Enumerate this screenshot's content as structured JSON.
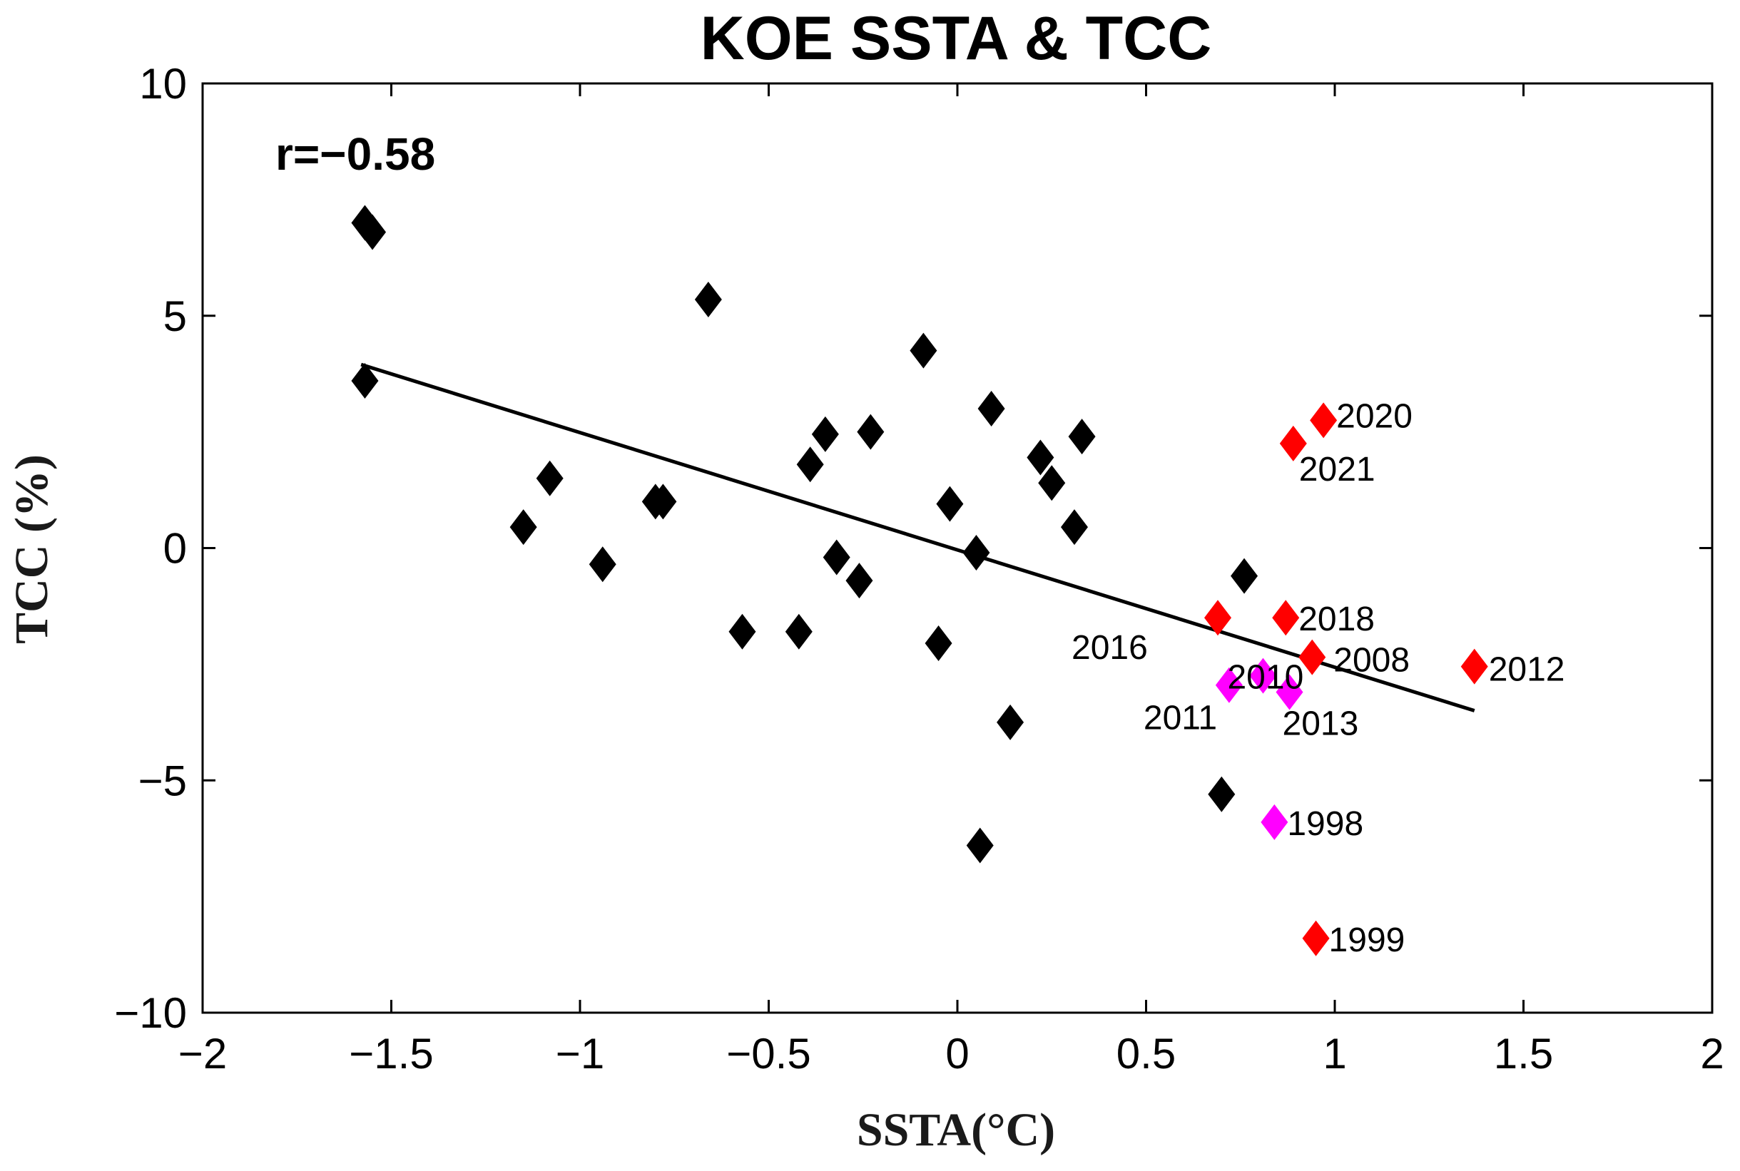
{
  "chart_data": {
    "type": "scatter",
    "title": "KOE SSTA & TCC",
    "xlabel": "SSTA(°C)",
    "ylabel": "TCC (%)",
    "annotation": "r=−0.58",
    "xlim": [
      -2,
      2
    ],
    "ylim": [
      -10,
      10
    ],
    "xticks": [
      -2,
      -1.5,
      -1,
      -0.5,
      0,
      0.5,
      1,
      1.5,
      2
    ],
    "yticks": [
      -10,
      -5,
      0,
      5,
      10
    ],
    "xtick_labels": [
      "−2",
      "−1.5",
      "−1",
      "−0.5",
      "0",
      "0.5",
      "1",
      "1.5",
      "2"
    ],
    "ytick_labels": [
      "−10",
      "−5",
      "0",
      "5",
      "10"
    ],
    "grid": false,
    "colors": {
      "black": "#000000",
      "red": "#ff0000",
      "magenta": "#ff00ff",
      "line": "#000000"
    },
    "points": [
      {
        "x": -1.57,
        "y": 7.0,
        "color": "black"
      },
      {
        "x": -1.55,
        "y": 6.8,
        "color": "black"
      },
      {
        "x": -1.57,
        "y": 3.6,
        "color": "black"
      },
      {
        "x": -1.15,
        "y": 0.45,
        "color": "black"
      },
      {
        "x": -1.08,
        "y": 1.5,
        "color": "black"
      },
      {
        "x": -0.94,
        "y": -0.35,
        "color": "black"
      },
      {
        "x": -0.8,
        "y": 1.0,
        "color": "black"
      },
      {
        "x": -0.78,
        "y": 1.0,
        "color": "black"
      },
      {
        "x": -0.66,
        "y": 5.35,
        "color": "black"
      },
      {
        "x": -0.57,
        "y": -1.8,
        "color": "black"
      },
      {
        "x": -0.42,
        "y": -1.8,
        "color": "black"
      },
      {
        "x": -0.39,
        "y": 1.8,
        "color": "black"
      },
      {
        "x": -0.35,
        "y": 2.45,
        "color": "black"
      },
      {
        "x": -0.32,
        "y": -0.2,
        "color": "black"
      },
      {
        "x": -0.26,
        "y": -0.7,
        "color": "black"
      },
      {
        "x": -0.23,
        "y": 2.5,
        "color": "black"
      },
      {
        "x": -0.09,
        "y": 4.25,
        "color": "black"
      },
      {
        "x": -0.05,
        "y": -2.05,
        "color": "black"
      },
      {
        "x": -0.02,
        "y": 0.95,
        "color": "black"
      },
      {
        "x": 0.05,
        "y": -0.1,
        "color": "black"
      },
      {
        "x": 0.06,
        "y": -6.4,
        "color": "black"
      },
      {
        "x": 0.09,
        "y": 3.0,
        "color": "black"
      },
      {
        "x": 0.14,
        "y": -3.75,
        "color": "black"
      },
      {
        "x": 0.22,
        "y": 1.95,
        "color": "black"
      },
      {
        "x": 0.25,
        "y": 1.4,
        "color": "black"
      },
      {
        "x": 0.31,
        "y": 0.45,
        "color": "black"
      },
      {
        "x": 0.33,
        "y": 2.4,
        "color": "black"
      },
      {
        "x": 0.7,
        "y": -5.3,
        "color": "black"
      },
      {
        "x": 0.76,
        "y": -0.6,
        "color": "black"
      },
      {
        "x": 0.69,
        "y": -1.5,
        "color": "red",
        "label": "2016"
      },
      {
        "x": 0.87,
        "y": -1.5,
        "color": "red",
        "label": "2018"
      },
      {
        "x": 0.94,
        "y": -2.35,
        "color": "red",
        "label": "2008"
      },
      {
        "x": 1.37,
        "y": -2.55,
        "color": "red",
        "label": "2012"
      },
      {
        "x": 0.97,
        "y": 2.75,
        "color": "red",
        "label": "2020"
      },
      {
        "x": 0.89,
        "y": 2.25,
        "color": "red",
        "label": "2021"
      },
      {
        "x": 0.95,
        "y": -8.4,
        "color": "red",
        "label": "1999"
      },
      {
        "x": 0.72,
        "y": -2.95,
        "color": "magenta",
        "label": "2011"
      },
      {
        "x": 0.81,
        "y": -2.75,
        "color": "magenta",
        "label": "2010"
      },
      {
        "x": 0.88,
        "y": -3.1,
        "color": "magenta",
        "label": "2013"
      },
      {
        "x": 0.84,
        "y": -5.9,
        "color": "magenta",
        "label": "1998"
      }
    ],
    "regression_line": {
      "x": [
        -1.58,
        1.37
      ],
      "y": [
        3.95,
        -3.5
      ]
    }
  }
}
